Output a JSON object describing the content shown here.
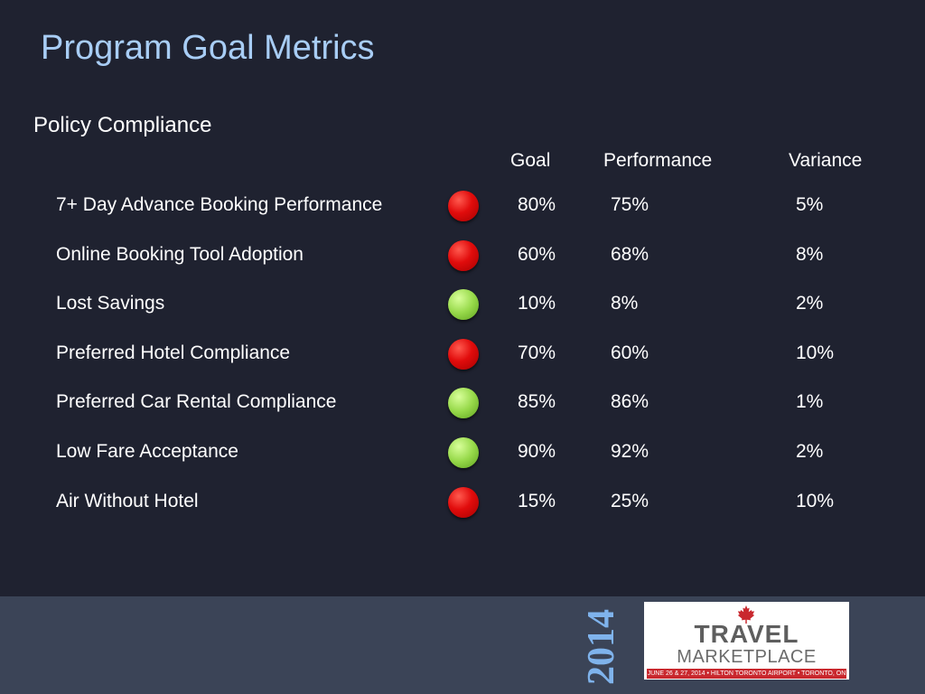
{
  "slide": {
    "title": "Program Goal Metrics",
    "section": "Policy Compliance"
  },
  "table": {
    "columns": {
      "goal": "Goal",
      "performance": "Performance",
      "variance": "Variance"
    },
    "status_colors": {
      "red": "#e10c0c",
      "green": "#97d94a"
    },
    "rows": [
      {
        "name": "7+ Day Advance Booking Performance",
        "status": "red",
        "goal": "80%",
        "performance": "75%",
        "variance": "5%"
      },
      {
        "name": "Online Booking Tool Adoption",
        "status": "red",
        "goal": "60%",
        "performance": "68%",
        "variance": "8%"
      },
      {
        "name": "Lost Savings",
        "status": "green",
        "goal": "10%",
        "performance": "8%",
        "variance": "2%"
      },
      {
        "name": "Preferred Hotel Compliance",
        "status": "red",
        "goal": "70%",
        "performance": "60%",
        "variance": "10%"
      },
      {
        "name": "Preferred Car Rental Compliance",
        "status": "green",
        "goal": "85%",
        "performance": "86%",
        "variance": "1%"
      },
      {
        "name": "Low Fare Acceptance",
        "status": "green",
        "goal": "90%",
        "performance": "92%",
        "variance": "2%"
      },
      {
        "name": "Air Without Hotel",
        "status": "red",
        "goal": "15%",
        "performance": "25%",
        "variance": "10%"
      }
    ]
  },
  "footer": {
    "year": "2014",
    "logo": {
      "icon": "maple-leaf-icon",
      "line1": "TRAVEL",
      "line2": "MARKETPLACE",
      "tagline": "JUNE 26 & 27, 2014 • HILTON TORONTO AIRPORT • TORONTO, ON"
    }
  }
}
